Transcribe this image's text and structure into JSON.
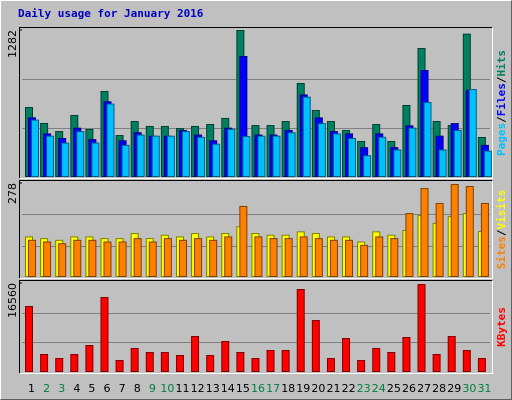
{
  "chart_data": {
    "type": "bar",
    "title": "Daily usage for January 2016",
    "categories": [
      "1",
      "2",
      "3",
      "4",
      "5",
      "6",
      "7",
      "8",
      "9",
      "10",
      "11",
      "12",
      "13",
      "14",
      "15",
      "16",
      "17",
      "18",
      "19",
      "20",
      "21",
      "22",
      "23",
      "24",
      "25",
      "26",
      "27",
      "28",
      "29",
      "30",
      "31"
    ],
    "category_colors": [
      "#000000",
      "#008040",
      "#008040",
      "#000000",
      "#000000",
      "#000000",
      "#000000",
      "#000000",
      "#008040",
      "#008040",
      "#000000",
      "#000000",
      "#000000",
      "#000000",
      "#000000",
      "#008040",
      "#008040",
      "#000000",
      "#000000",
      "#000000",
      "#000000",
      "#000000",
      "#008040",
      "#008040",
      "#000000",
      "#000000",
      "#000000",
      "#000000",
      "#000000",
      "#008040",
      "#008040"
    ],
    "legend_separator": "/",
    "panels": [
      {
        "ylim": [
          0,
          1282
        ],
        "yticks": [
          1282
        ],
        "series": [
          {
            "name": "Hits",
            "color": "#008060",
            "values": [
              610,
              471,
              401,
              541,
              419,
              750,
              366,
              488,
              445,
              445,
              427,
              445,
              462,
              515,
              1282,
              453,
              453,
              488,
              820,
              584,
              488,
              410,
              314,
              462,
              314,
              628,
              1125,
              488,
              453,
              1250,
              349
            ]
          },
          {
            "name": "Files",
            "color": "#0000ff",
            "values": [
              520,
              380,
              340,
              430,
              330,
              660,
              320,
              390,
              360,
              360,
              410,
              370,
              320,
              430,
              1055,
              370,
              370,
              410,
              720,
              520,
              400,
              380,
              260,
              380,
              260,
              450,
              933,
              360,
              470,
              760,
              280
            ]
          },
          {
            "name": "Pages",
            "color": "#00c0ff",
            "values": [
              500,
              360,
              300,
              400,
              300,
              640,
              280,
              370,
              360,
              360,
              400,
              350,
              290,
              420,
              357,
              360,
              360,
              390,
              700,
              470,
              380,
              340,
              190,
              350,
              240,
              430,
              654,
              240,
              410,
              767,
              230
            ]
          }
        ]
      },
      {
        "ylim": [
          0,
          278
        ],
        "yticks": [
          278
        ],
        "series": [
          {
            "name": "Visits",
            "color": "#ffff00",
            "values": [
              120,
              115,
              110,
              120,
              120,
              115,
              115,
              130,
              115,
              125,
              120,
              130,
              120,
              130,
              150,
              130,
              125,
              125,
              135,
              130,
              120,
              120,
              105,
              135,
              125,
              139,
              183,
              160,
              180,
              189,
              136
            ]
          },
          {
            "name": "Sites",
            "color": "#ff8000",
            "values": [
              110,
              105,
              100,
              110,
              110,
              105,
              105,
              115,
              105,
              115,
              110,
              115,
              110,
              120,
              210,
              120,
              115,
              115,
              120,
              115,
              110,
              110,
              95,
              120,
              115,
              189,
              263,
              219,
              275,
              269,
              219
            ]
          }
        ]
      },
      {
        "ylim": [
          0,
          16560
        ],
        "yticks": [
          16560
        ],
        "series": [
          {
            "name": "KBytes",
            "color": "#ff0000",
            "values": [
              12280,
              3350,
              2600,
              3350,
              5020,
              13950,
              2230,
              4460,
              3720,
              3720,
              3160,
              6700,
              3160,
              5770,
              3720,
              2600,
              4090,
              4090,
              15440,
              9670,
              2600,
              6320,
              2230,
              4460,
              3720,
              6510,
              16370,
              3350,
              6700,
              4090,
              2600
            ]
          }
        ]
      }
    ]
  }
}
